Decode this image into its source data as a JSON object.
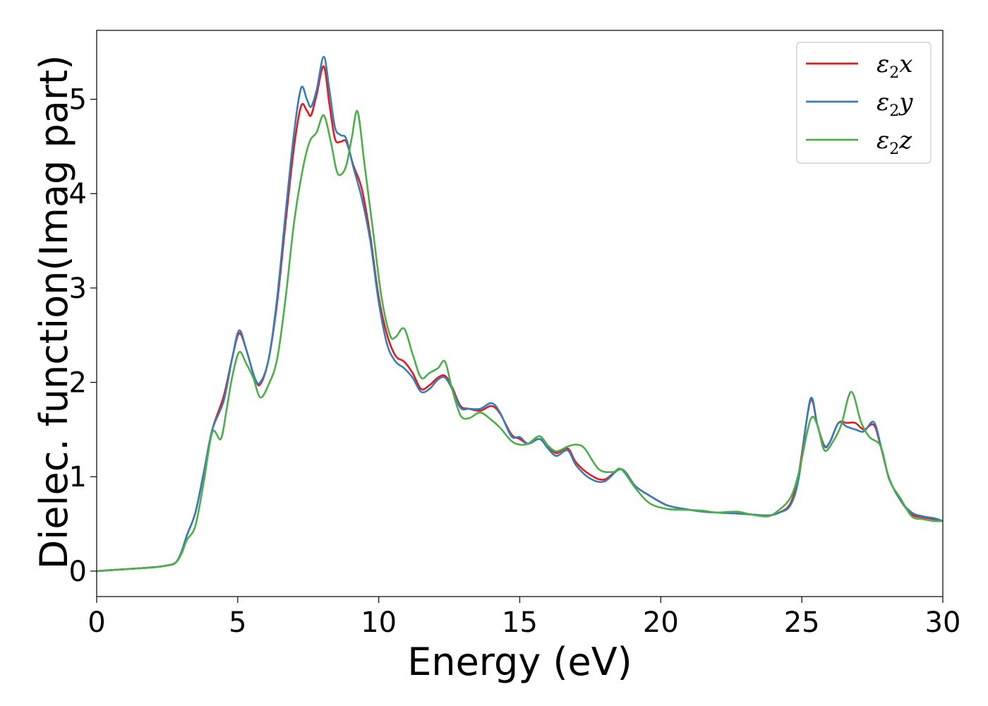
{
  "chart_data": {
    "type": "line",
    "title": "",
    "xlabel": "Energy (eV)",
    "ylabel": "Dielec. function(Imag part)",
    "xlim": [
      0,
      30
    ],
    "ylim": [
      -0.27,
      5.73
    ],
    "xticks": [
      0,
      5,
      10,
      15,
      20,
      25,
      30
    ],
    "yticks": [
      0,
      1,
      2,
      3,
      4,
      5
    ],
    "grid": false,
    "legend_position": "top-right",
    "series": [
      {
        "name": "ε2x",
        "symbol": "ε",
        "sub": "2",
        "suffix": "x",
        "color": "#e41a1c",
        "x": [
          0,
          1,
          2,
          2.5,
          2.8,
          3.0,
          3.2,
          3.5,
          3.8,
          4.1,
          4.5,
          4.8,
          5.05,
          5.3,
          5.6,
          5.8,
          6.1,
          6.4,
          6.7,
          7.0,
          7.25,
          7.45,
          7.6,
          7.8,
          8.05,
          8.25,
          8.45,
          8.65,
          8.85,
          9.1,
          9.4,
          9.7,
          10.0,
          10.3,
          10.6,
          10.9,
          11.2,
          11.5,
          11.8,
          12.1,
          12.35,
          12.6,
          12.9,
          13.2,
          13.6,
          14.0,
          14.3,
          14.7,
          15.0,
          15.3,
          15.7,
          16.0,
          16.3,
          16.7,
          17.0,
          17.5,
          18.0,
          18.6,
          19.1,
          19.6,
          20.2,
          20.8,
          21.5,
          22.0,
          22.7,
          23.2,
          23.8,
          24.2,
          24.6,
          24.9,
          25.3,
          25.55,
          25.8,
          26.0,
          26.3,
          26.6,
          26.9,
          27.2,
          27.55,
          27.8,
          28.1,
          28.5,
          28.9,
          29.3,
          29.7,
          30.0
        ],
        "y": [
          0.0,
          0.02,
          0.04,
          0.06,
          0.09,
          0.2,
          0.38,
          0.62,
          1.05,
          1.5,
          1.85,
          2.25,
          2.52,
          2.35,
          2.05,
          1.98,
          2.25,
          2.85,
          3.7,
          4.5,
          4.93,
          4.88,
          4.83,
          5.05,
          5.35,
          4.95,
          4.58,
          4.55,
          4.55,
          4.3,
          4.05,
          3.55,
          2.9,
          2.5,
          2.28,
          2.22,
          2.1,
          1.93,
          1.97,
          2.05,
          2.07,
          1.95,
          1.75,
          1.72,
          1.7,
          1.75,
          1.67,
          1.45,
          1.4,
          1.35,
          1.4,
          1.32,
          1.25,
          1.3,
          1.15,
          1.02,
          0.97,
          1.08,
          0.9,
          0.8,
          0.7,
          0.66,
          0.63,
          0.62,
          0.61,
          0.6,
          0.59,
          0.62,
          0.72,
          1.05,
          1.8,
          1.55,
          1.33,
          1.37,
          1.57,
          1.57,
          1.57,
          1.5,
          1.55,
          1.32,
          0.98,
          0.75,
          0.6,
          0.57,
          0.55,
          0.53
        ]
      },
      {
        "name": "ε2y",
        "symbol": "ε",
        "sub": "2",
        "suffix": "y",
        "color": "#377eb8",
        "x": [
          0,
          1,
          2,
          2.5,
          2.8,
          3.0,
          3.2,
          3.5,
          3.8,
          4.1,
          4.5,
          4.8,
          5.05,
          5.3,
          5.6,
          5.8,
          6.1,
          6.4,
          6.7,
          7.0,
          7.25,
          7.45,
          7.6,
          7.8,
          8.05,
          8.25,
          8.45,
          8.65,
          8.85,
          9.1,
          9.4,
          9.7,
          10.0,
          10.3,
          10.6,
          10.9,
          11.2,
          11.5,
          11.8,
          12.1,
          12.35,
          12.6,
          12.9,
          13.2,
          13.6,
          14.0,
          14.3,
          14.7,
          15.0,
          15.3,
          15.7,
          16.0,
          16.3,
          16.7,
          17.0,
          17.5,
          18.0,
          18.6,
          19.1,
          19.6,
          20.2,
          20.8,
          21.5,
          22.0,
          22.7,
          23.2,
          23.8,
          24.2,
          24.6,
          24.9,
          25.3,
          25.55,
          25.8,
          26.0,
          26.3,
          26.6,
          26.9,
          27.2,
          27.55,
          27.8,
          28.1,
          28.5,
          28.9,
          29.3,
          29.7,
          30.0
        ],
        "y": [
          0.0,
          0.02,
          0.04,
          0.06,
          0.09,
          0.2,
          0.38,
          0.62,
          1.05,
          1.5,
          1.8,
          2.25,
          2.55,
          2.35,
          2.05,
          2.0,
          2.25,
          2.9,
          3.8,
          4.65,
          5.12,
          5.0,
          4.92,
          5.1,
          5.45,
          5.1,
          4.7,
          4.62,
          4.58,
          4.28,
          3.95,
          3.5,
          2.85,
          2.4,
          2.22,
          2.15,
          2.05,
          1.9,
          1.93,
          2.03,
          2.05,
          1.93,
          1.73,
          1.72,
          1.72,
          1.78,
          1.68,
          1.43,
          1.42,
          1.35,
          1.4,
          1.3,
          1.22,
          1.28,
          1.12,
          0.98,
          0.95,
          1.08,
          0.9,
          0.8,
          0.7,
          0.66,
          0.63,
          0.62,
          0.61,
          0.6,
          0.59,
          0.62,
          0.7,
          1.0,
          1.82,
          1.55,
          1.32,
          1.37,
          1.57,
          1.53,
          1.5,
          1.48,
          1.58,
          1.33,
          0.98,
          0.75,
          0.62,
          0.58,
          0.56,
          0.53
        ]
      },
      {
        "name": "ε2z",
        "symbol": "ε",
        "sub": "2",
        "suffix": "z",
        "color": "#4daf4a",
        "x": [
          0,
          1,
          2,
          2.5,
          2.8,
          3.0,
          3.2,
          3.5,
          3.8,
          4.1,
          4.4,
          4.6,
          4.8,
          5.05,
          5.3,
          5.55,
          5.8,
          6.1,
          6.4,
          6.7,
          7.0,
          7.3,
          7.55,
          7.8,
          8.05,
          8.3,
          8.5,
          8.65,
          8.85,
          9.05,
          9.25,
          9.5,
          9.8,
          10.1,
          10.4,
          10.6,
          10.9,
          11.2,
          11.5,
          11.8,
          12.1,
          12.35,
          12.6,
          12.9,
          13.2,
          13.6,
          14.0,
          14.3,
          14.7,
          15.0,
          15.3,
          15.7,
          16.0,
          16.3,
          16.7,
          17.0,
          17.3,
          17.8,
          18.3,
          18.6,
          19.1,
          19.6,
          20.2,
          20.8,
          21.5,
          22.0,
          22.7,
          23.2,
          23.8,
          24.2,
          24.6,
          24.9,
          25.3,
          25.55,
          25.8,
          26.1,
          26.4,
          26.75,
          27.1,
          27.4,
          27.8,
          28.1,
          28.5,
          28.9,
          29.3,
          29.7,
          30.0
        ],
        "y": [
          0.0,
          0.02,
          0.04,
          0.06,
          0.09,
          0.18,
          0.33,
          0.48,
          0.95,
          1.47,
          1.4,
          1.7,
          2.05,
          2.32,
          2.2,
          2.05,
          1.84,
          1.98,
          2.25,
          2.9,
          3.7,
          4.25,
          4.55,
          4.65,
          4.83,
          4.55,
          4.25,
          4.2,
          4.3,
          4.6,
          4.87,
          4.3,
          3.6,
          2.9,
          2.5,
          2.48,
          2.57,
          2.3,
          2.05,
          2.1,
          2.15,
          2.22,
          1.93,
          1.65,
          1.62,
          1.68,
          1.6,
          1.52,
          1.38,
          1.34,
          1.35,
          1.43,
          1.33,
          1.27,
          1.32,
          1.34,
          1.3,
          1.08,
          1.05,
          1.08,
          0.88,
          0.72,
          0.66,
          0.65,
          0.64,
          0.62,
          0.63,
          0.6,
          0.58,
          0.65,
          0.78,
          1.05,
          1.6,
          1.55,
          1.28,
          1.37,
          1.55,
          1.9,
          1.58,
          1.42,
          1.32,
          0.97,
          0.77,
          0.58,
          0.55,
          0.53,
          0.53
        ]
      }
    ]
  }
}
